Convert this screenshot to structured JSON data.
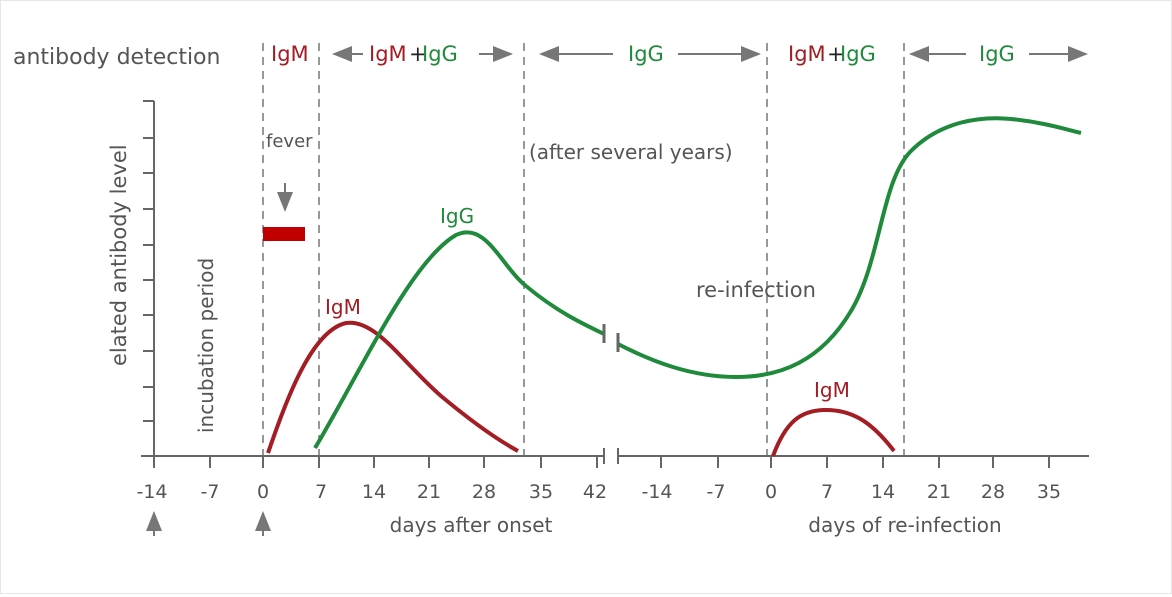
{
  "detection": {
    "label": "antibody detection",
    "igm": "IgM",
    "plus": "+",
    "igg": "IgG"
  },
  "ylabel": "elated antibody level",
  "incubation": "incubation period",
  "fever": "fever",
  "after_years": "(after several years)",
  "reinfection": "re-infection",
  "curve_labels": {
    "igm1": "IgM",
    "igg1": "IgG",
    "igm2": "IgM"
  },
  "axis1": {
    "ticks": [
      "-14",
      "-7",
      "0",
      "7",
      "14",
      "21",
      "28",
      "35",
      "42"
    ],
    "label": "days after onset"
  },
  "axis2": {
    "ticks": [
      "-14",
      "-7",
      "0",
      "7",
      "14",
      "21",
      "28",
      "35"
    ],
    "label": "days of re-infection"
  },
  "colors": {
    "igm": "#a31d24",
    "igg": "#1f8a3c",
    "axis": "#666666",
    "fever_bar": "#c00000"
  }
}
